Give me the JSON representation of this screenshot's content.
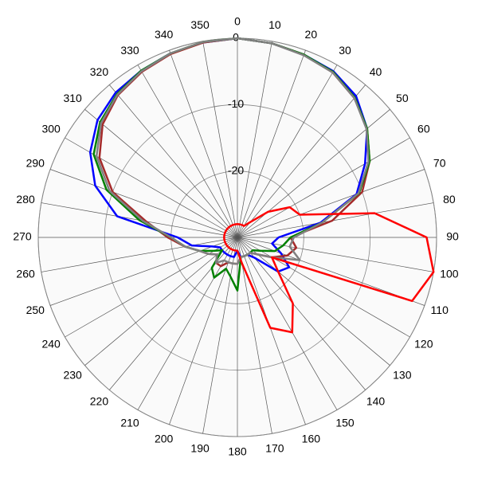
{
  "chart_data": {
    "type": "polar",
    "x": [
      0,
      10,
      20,
      30,
      40,
      50,
      60,
      70,
      80,
      90,
      100,
      110,
      120,
      130,
      140,
      150,
      160,
      170,
      180,
      190,
      200,
      210,
      220,
      230,
      240,
      250,
      260,
      270,
      280,
      290,
      300,
      310,
      320,
      330,
      340,
      350
    ],
    "rlim": [
      -30,
      0
    ],
    "rticks": [
      -20,
      -10,
      0
    ],
    "grid": true,
    "series": [
      {
        "color": "#0000ff",
        "values": [
          0,
          -0.3,
          -0.7,
          -1.1,
          -2.2,
          -4.5,
          -7.8,
          -10.9,
          -17.3,
          -23.8,
          -24.7,
          -23,
          -21,
          -22,
          -26,
          -27,
          -27,
          -27,
          -28,
          -27,
          -27,
          -27,
          -27,
          -27,
          -27,
          -26,
          -23,
          -21,
          -11.6,
          -7.2,
          -4.4,
          -2.5,
          -1.5,
          -1,
          -0.5,
          -0.2
        ]
      },
      {
        "color": "#a52a2a",
        "values": [
          0,
          -0.3,
          -0.7,
          -1.3,
          -2.6,
          -4.5,
          -7,
          -10,
          -15.5,
          -22,
          -21,
          -22,
          -24,
          -26,
          -27,
          -27,
          -27,
          -27,
          -26,
          -26,
          -26,
          -25,
          -25,
          -26,
          -25,
          -24,
          -22,
          -19.5,
          -16,
          -10,
          -6,
          -3.5,
          -2,
          -1.2,
          -0.6,
          -0.2
        ]
      },
      {
        "color": "#008000",
        "values": [
          0,
          -0.3,
          -0.7,
          -1.2,
          -2.5,
          -4.5,
          -7,
          -10.5,
          -17,
          -22,
          -23,
          -24,
          -26,
          -27,
          -27,
          -27,
          -27,
          -27,
          -22,
          -24,
          -25,
          -23,
          -24,
          -27,
          -26,
          -24,
          -22,
          -20,
          -15,
          -9,
          -5,
          -3,
          -1.8,
          -1,
          -0.5,
          -0.1
        ]
      },
      {
        "color": "#808080",
        "values": [
          0,
          -0.3,
          -0.8,
          -1.3,
          -2.6,
          -4.6,
          -7.2,
          -10.6,
          -17,
          -21.5,
          -22,
          -20,
          -24,
          -26,
          -27,
          -27,
          -27,
          -27,
          -26,
          -26,
          -26,
          -26,
          -25,
          -26,
          -25,
          -24,
          -22,
          -20,
          -15.5,
          -9.5,
          -5.5,
          -3.2,
          -1.9,
          -1.1,
          -0.5,
          -0.1
        ]
      },
      {
        "color": "#ff0000",
        "values": [
          -28,
          -28,
          -28,
          -28,
          -27,
          -24,
          -20.9,
          -20,
          -9,
          -1.5,
          0,
          -2,
          -24,
          -22,
          -17,
          -13.5,
          -15.5,
          -26,
          -28,
          -28,
          -28,
          -28,
          -28,
          -28,
          -28,
          -28,
          -28,
          -28,
          -28,
          -28,
          -28,
          -28,
          -28,
          -28,
          -28,
          -28
        ]
      }
    ]
  }
}
